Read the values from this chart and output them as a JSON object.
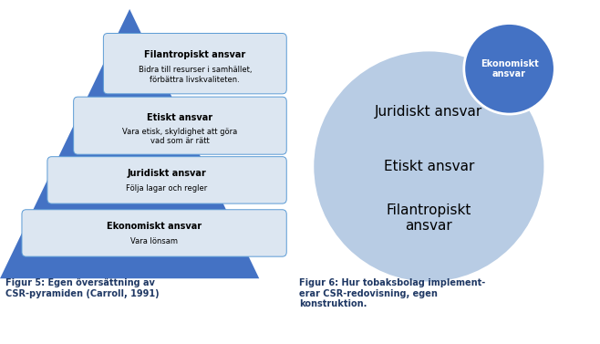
{
  "bg_color": "#ffffff",
  "pyramid_color": "#4472c4",
  "box_color": "#dce6f1",
  "box_edge_color": "#5b9bd5",
  "text_color_dark": "#000000",
  "caption_color": "#1f3864",
  "large_circle_color": "#b8cce4",
  "small_circle_color": "#4472c4",
  "small_circle_edge": "#ffffff",
  "layers": [
    {
      "title": "Filantropiskt ansvar",
      "body": "Bidra till resurser i samhället,\nförbättra livskvaliteten."
    },
    {
      "title": "Etiskt ansvar",
      "body": "Vara etisk, skyldighet att göra\nvad som är rätt"
    },
    {
      "title": "Juridiskt ansvar",
      "body": "Följa lagar och regler"
    },
    {
      "title": "Ekonomiskt ansvar",
      "body": "Vara lönsam"
    }
  ],
  "caption_left": "Figur 5: Egen översättning av\nCSR-pyramiden (Carroll, 1991)",
  "caption_right": "Figur 6: Hur tobaksbolag implement-\nerar CSR-redovisning, egen\nkonstruktion.",
  "circle_labels": [
    "Juridiskt ansvar",
    "Etiskt ansvar",
    "Filantropiskt\nansvar"
  ],
  "small_circle_label": "Ekonomiskt\nansvar"
}
